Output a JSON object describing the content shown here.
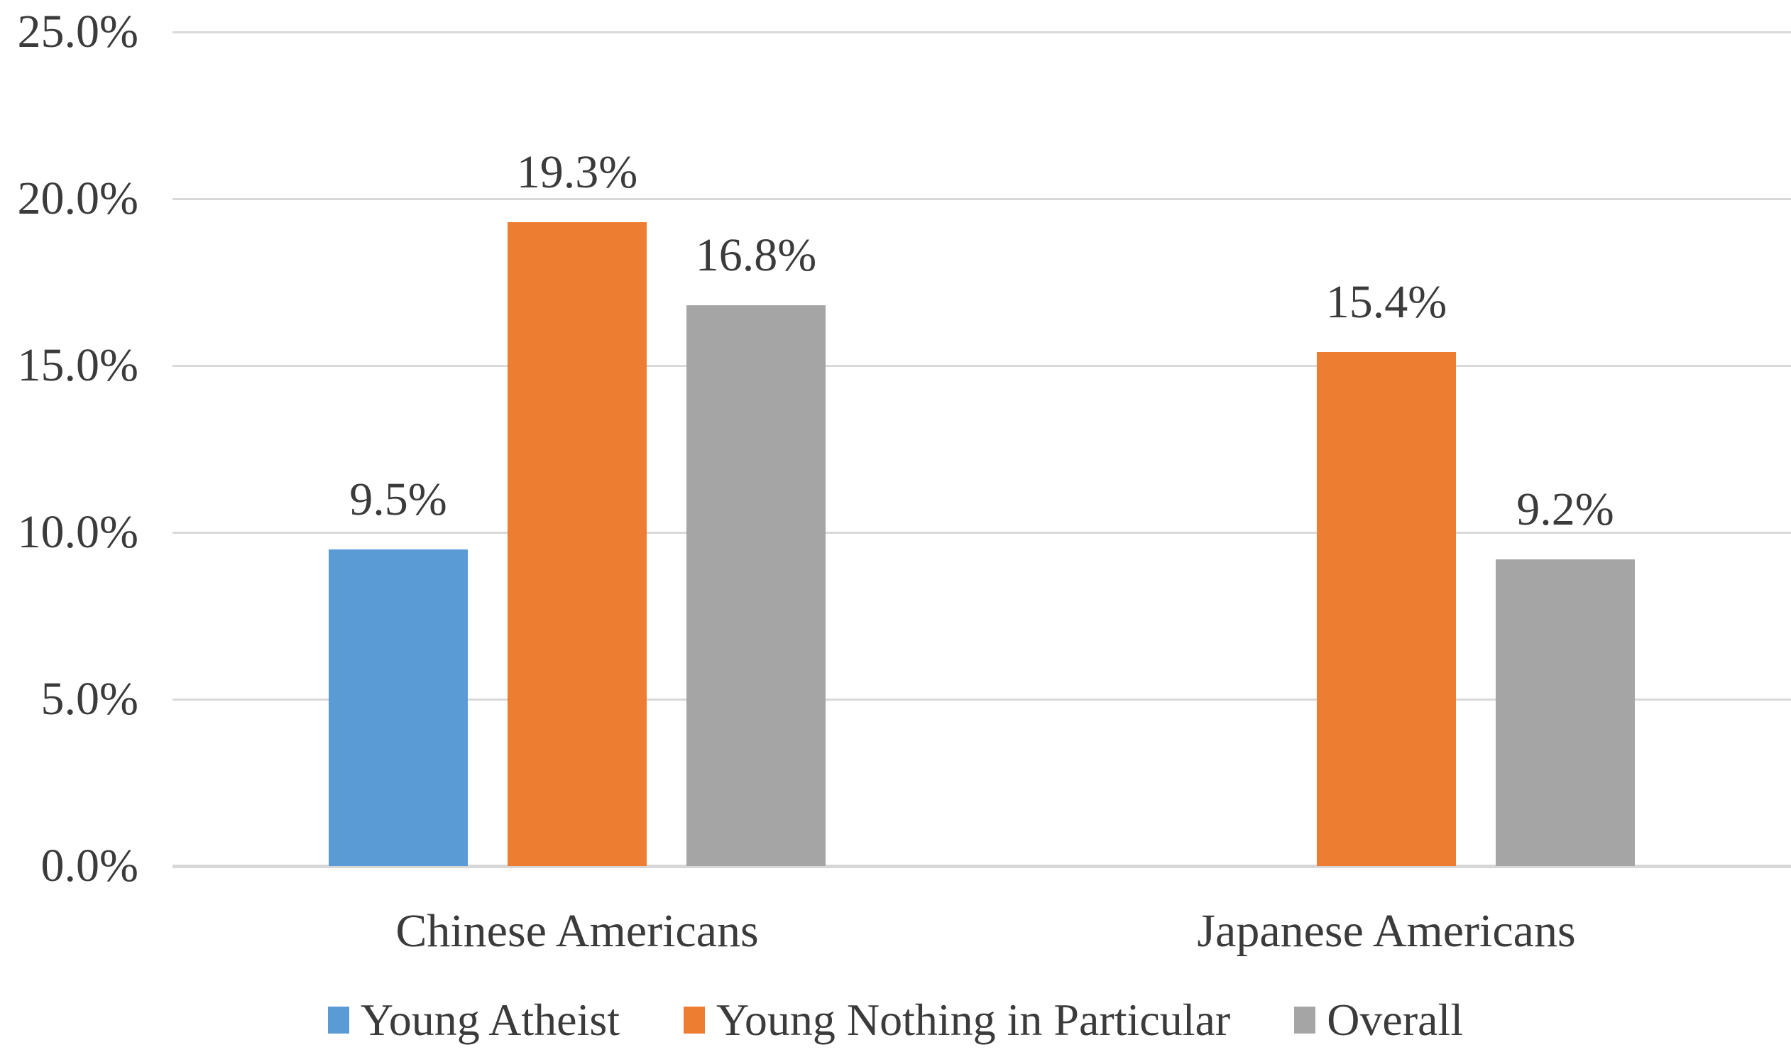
{
  "chart_data": {
    "type": "bar",
    "title": "",
    "xlabel": "",
    "ylabel": "",
    "categories": [
      "Chinese Americans",
      "Japanese Americans"
    ],
    "series": [
      {
        "name": "Young Atheist",
        "color": "#5B9BD5",
        "values": [
          9.5,
          null
        ],
        "labels": [
          "9.5%",
          null
        ]
      },
      {
        "name": "Young Nothing in Particular",
        "color": "#ED7D31",
        "values": [
          19.3,
          15.4
        ],
        "labels": [
          "19.3%",
          "15.4%"
        ]
      },
      {
        "name": "Overall",
        "color": "#A5A5A5",
        "values": [
          16.8,
          9.2
        ],
        "labels": [
          "16.8%",
          "9.2%"
        ]
      }
    ],
    "y_axis": {
      "min": 0,
      "max": 25,
      "tick_values": [
        0,
        5,
        10,
        15,
        20,
        25
      ],
      "tick_labels": [
        "0.0%",
        "5.0%",
        "10.0%",
        "15.0%",
        "20.0%",
        "25.0%"
      ]
    },
    "grid": true,
    "legend_position": "bottom"
  },
  "style": {
    "background": "#FFFFFF",
    "text_color": "#3B3B3B",
    "gridline_color": "#D9D9D9",
    "axis_line_color": "#D7D7D7"
  }
}
